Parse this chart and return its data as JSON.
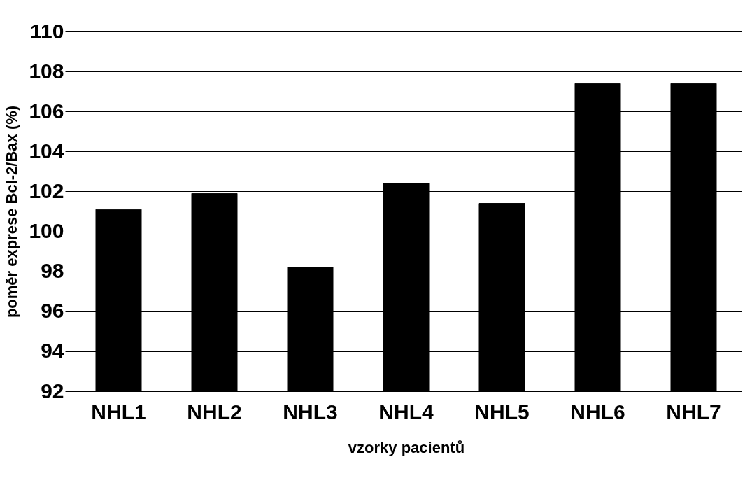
{
  "chart_data": {
    "type": "bar",
    "xlabel": "vzorky pacientů",
    "ylabel": "poměr exprese Bcl-2/Bax (%)",
    "categories": [
      "NHL1",
      "NHL2",
      "NHL3",
      "NHL4",
      "NHL5",
      "NHL6",
      "NHL7"
    ],
    "values": [
      101.1,
      101.9,
      98.2,
      102.4,
      101.4,
      107.4,
      107.4
    ],
    "color": "#000000",
    "ylim": [
      92,
      110
    ],
    "yticks": [
      92,
      94,
      96,
      98,
      100,
      102,
      104,
      106,
      108,
      110
    ],
    "grid": "y"
  }
}
